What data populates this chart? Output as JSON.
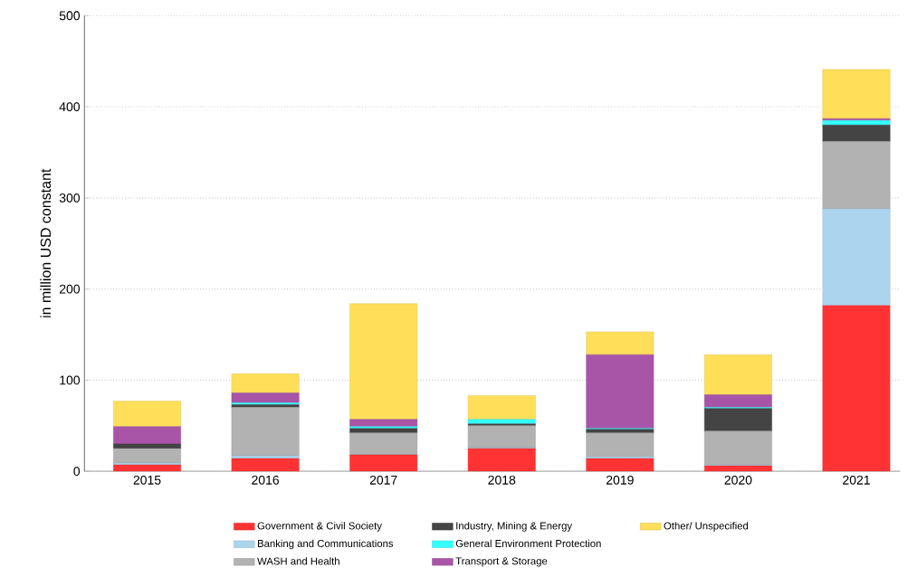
{
  "chart_data": {
    "type": "bar",
    "stacked": true,
    "ylabel": "in million USD constant",
    "categories": [
      "2015",
      "2016",
      "2017",
      "2018",
      "2019",
      "2020",
      "2021"
    ],
    "series": [
      {
        "name": "Government & Civil Society",
        "color": "#ff3333",
        "values": [
          7,
          14,
          18,
          25,
          14,
          6,
          182
        ]
      },
      {
        "name": "Banking and Communications",
        "color": "#acd4ee",
        "values": [
          2,
          3,
          0,
          1,
          2,
          1,
          106
        ]
      },
      {
        "name": "WASH and Health",
        "color": "#b2b2b2",
        "values": [
          16,
          53,
          24,
          24,
          26,
          37,
          74
        ]
      },
      {
        "name": "Industry, Mining & Energy",
        "color": "#444444",
        "values": [
          5,
          3,
          5,
          2,
          4,
          25,
          18
        ]
      },
      {
        "name": "General Environment Protection",
        "color": "#33ffff",
        "values": [
          0,
          2,
          2,
          5,
          1,
          1,
          5
        ]
      },
      {
        "name": "Transport & Storage",
        "color": "#a855a8",
        "values": [
          19,
          11,
          8,
          0,
          81,
          14,
          2
        ]
      },
      {
        "name": "Other/ Unspecified",
        "color": "#ffdf5a",
        "values": [
          28,
          21,
          127,
          26,
          25,
          44,
          54
        ]
      }
    ],
    "ylim": [
      0,
      500
    ],
    "yticks": [
      0,
      100,
      200,
      300,
      400,
      500
    ],
    "grid": "y",
    "legend": "bottom"
  }
}
